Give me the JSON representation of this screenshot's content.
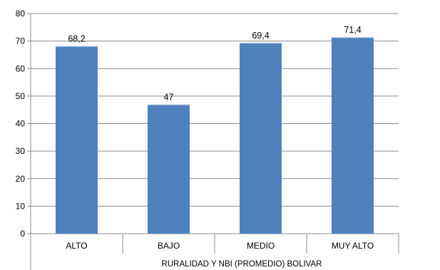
{
  "chart_data": {
    "type": "bar",
    "title": "",
    "xlabel": "RURALIDAD Y NBI (PROMEDIO) BOLIVAR",
    "ylabel": "",
    "categories": [
      "ALTO",
      "BAJO",
      "MEDIO",
      "MUY ALTO"
    ],
    "values": [
      68.2,
      47,
      69.4,
      71.4
    ],
    "value_labels": [
      "68,2",
      "47",
      "69,4",
      "71,4"
    ],
    "ylim": [
      0,
      80
    ],
    "yticks": [
      0,
      10,
      20,
      30,
      40,
      50,
      60,
      70,
      80
    ],
    "ytick_labels": [
      "0",
      "10",
      "20",
      "30",
      "40",
      "50",
      "60",
      "70",
      "80"
    ],
    "grid": true,
    "legend": "none",
    "bar_color": "#4F81BD"
  }
}
